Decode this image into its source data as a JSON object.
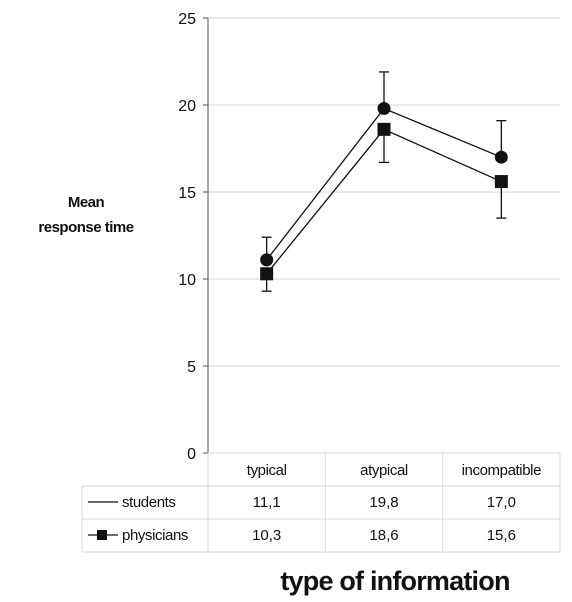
{
  "chart_data": {
    "type": "line",
    "ylabel_line1": "Mean",
    "ylabel_line2": "response time",
    "xlabel": "type of information",
    "categories": [
      "typical",
      "atypical",
      "incompatible"
    ],
    "ylim": [
      0,
      25
    ],
    "yticks": [
      "0",
      "5",
      "10",
      "15",
      "20",
      "25"
    ],
    "grid": true,
    "series": [
      {
        "name": "students",
        "marker": "circle",
        "values": [
          11.1,
          19.8,
          17.0
        ],
        "labels": [
          "11,1",
          "19,8",
          "17,0"
        ],
        "err_upper": [
          12.4,
          21.9,
          19.1
        ]
      },
      {
        "name": "physicians",
        "marker": "square",
        "values": [
          10.3,
          18.6,
          15.6
        ],
        "labels": [
          "10,3",
          "18,6",
          "15,6"
        ],
        "err_lower": [
          9.3,
          16.7,
          13.5
        ]
      }
    ],
    "colors": {
      "line": "#111111",
      "grid": "#d9d9d9",
      "axis": "#555555"
    }
  }
}
